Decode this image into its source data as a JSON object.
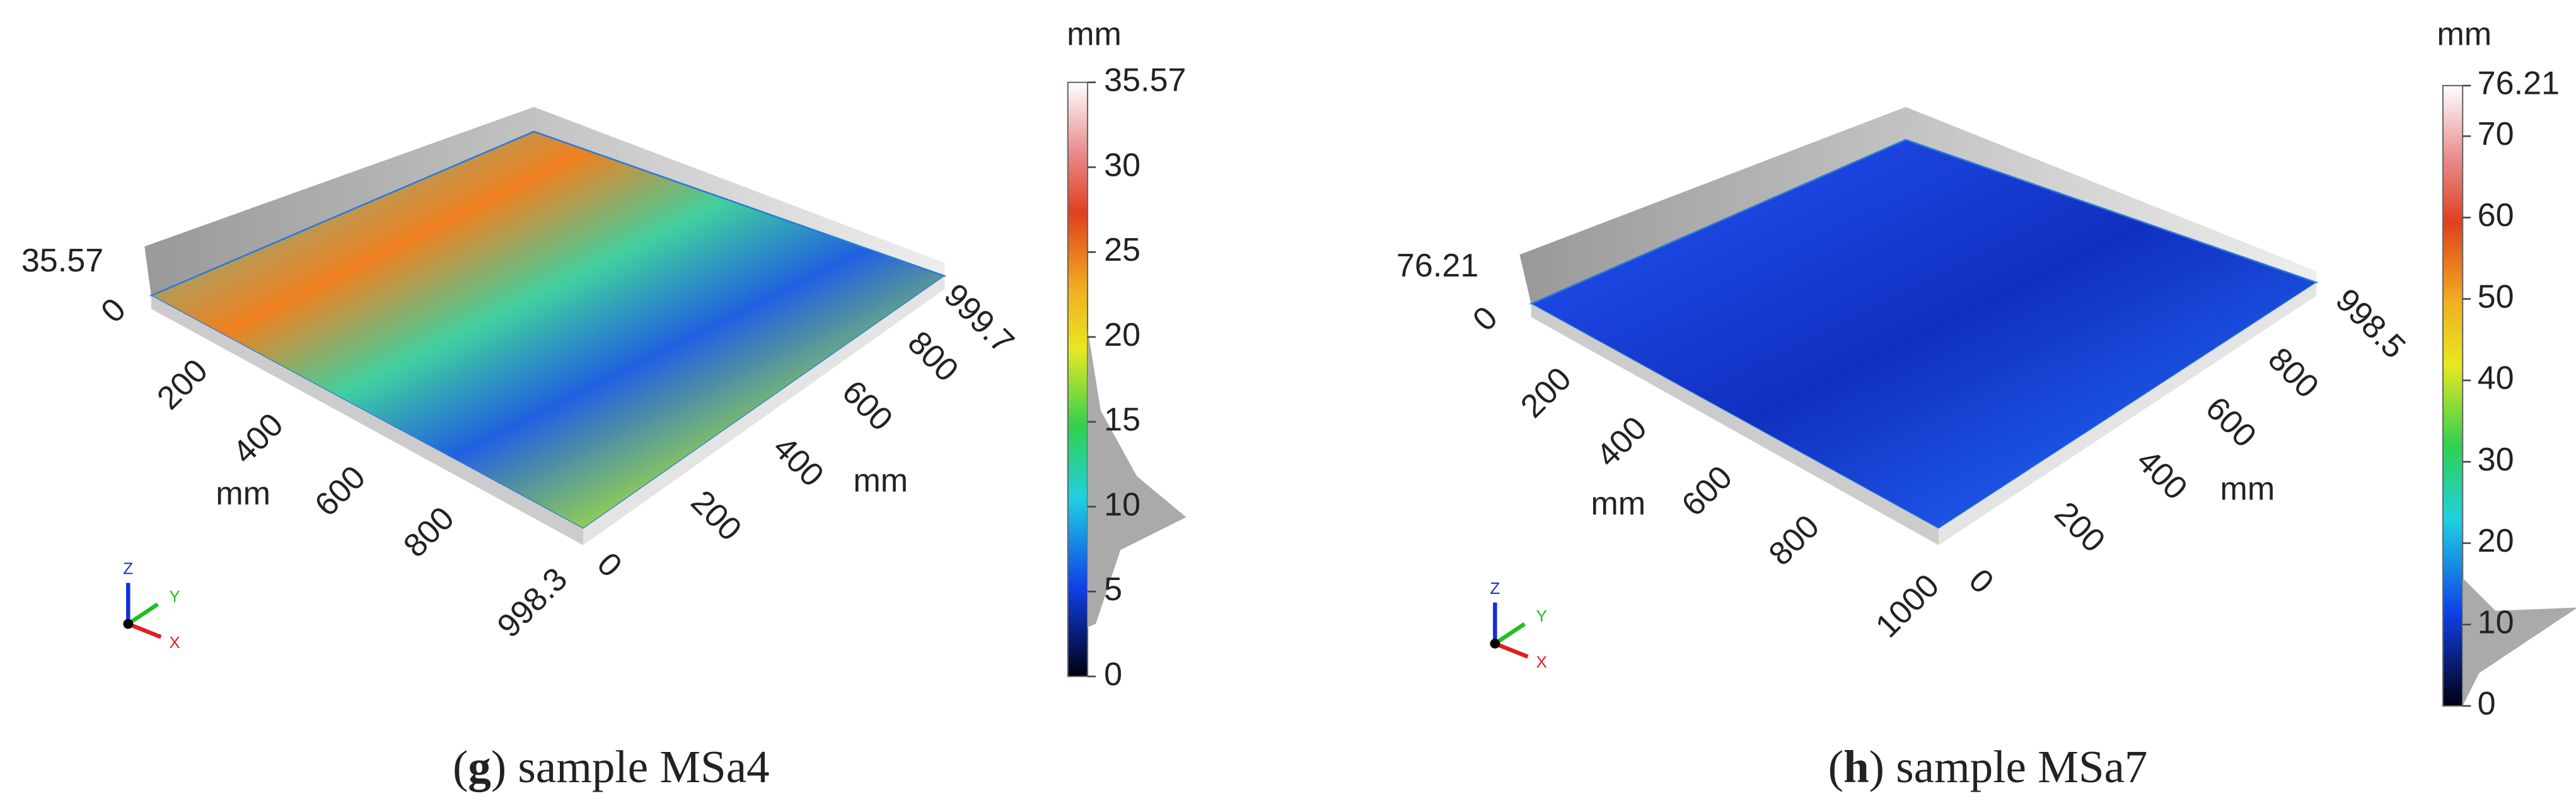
{
  "panels": [
    {
      "caption": {
        "open": "(",
        "letter": "g",
        "rest": ") sample MSa4"
      },
      "z_max_label": "35.57",
      "z_min_label": "0",
      "left_axis": {
        "ticks": [
          "200",
          "400",
          "600",
          "800",
          "998.3"
        ],
        "unit": "mm"
      },
      "right_axis": {
        "ticks": [
          "0",
          "200",
          "400",
          "600",
          "800",
          "999.7"
        ],
        "unit": "mm"
      },
      "colorbar": {
        "unit": "mm",
        "ticks": [
          "35.57",
          "30",
          "25",
          "20",
          "15",
          "10",
          "5",
          "0"
        ]
      },
      "triad": {
        "z": "Z",
        "y": "Y",
        "x": "X"
      }
    },
    {
      "caption": {
        "open": "(",
        "letter": "h",
        "rest": ") sample MSa7"
      },
      "z_max_label": "76.21",
      "z_min_label": "0",
      "left_axis": {
        "ticks": [
          "200",
          "400",
          "600",
          "800",
          "1000"
        ],
        "unit": "mm"
      },
      "right_axis": {
        "ticks": [
          "0",
          "200",
          "400",
          "600",
          "800",
          "998.5"
        ],
        "unit": "mm"
      },
      "colorbar": {
        "unit": "mm",
        "ticks": [
          "76.21",
          "70",
          "60",
          "50",
          "40",
          "30",
          "20",
          "10",
          "0"
        ]
      },
      "triad": {
        "z": "Z",
        "y": "Y",
        "x": "X"
      }
    }
  ]
}
